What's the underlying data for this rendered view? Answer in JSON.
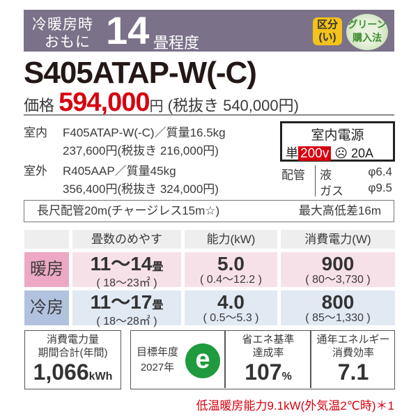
{
  "header": {
    "line1": "冷暖房時",
    "line2": "おもに",
    "size": "14",
    "size_unit": "畳程度",
    "kubun": "区分",
    "kubun_value": "(い)",
    "green1": "グリーン",
    "green2": "購入法"
  },
  "model": "S405ATAP-W(-C)",
  "price": {
    "label": "価格",
    "value": "594,000",
    "yen": "円",
    "tax_excl": "(税抜き 540,000円)"
  },
  "indoor": {
    "label": "室内",
    "model": "F405ATAP-W(-C)／質量16.5kg",
    "price": "237,600円(税抜き 216,000円)"
  },
  "outdoor": {
    "label": "室外",
    "model": "R405AAP／質量45kg",
    "price": "356,400円(税抜き 324,000円)"
  },
  "power": {
    "title": "室内電源",
    "phase": "単",
    "voltage": "200v",
    "plug_icon": "☹",
    "amp": "20A"
  },
  "piping": {
    "label": "配管",
    "liquid": "液",
    "liquid_size": "φ6.4",
    "gas": "ガス",
    "gas_size": "φ9.5"
  },
  "long_pipe": {
    "left": "長尺配管20m(チャージレス15m☆)",
    "right": "最大高低差16m"
  },
  "table": {
    "headers": [
      "",
      "畳数のめやす",
      "能力(kW)",
      "消費電力(W)"
    ],
    "rows": [
      {
        "label": "暖房",
        "tatami": "11～14",
        "tatami_unit": "畳",
        "area": "( 18～23㎡ )",
        "cap": "5.0",
        "cap_range": "( 0.4～12.2 )",
        "pow": "900",
        "pow_range": "( 80～3,730 )"
      },
      {
        "label": "冷房",
        "tatami": "11～17",
        "tatami_unit": "畳",
        "area": "( 18～28㎡ )",
        "cap": "4.0",
        "cap_range": "( 0.5～5.3 )",
        "pow": "800",
        "pow_range": "( 85～1,330 )"
      }
    ]
  },
  "annual": {
    "title1": "消費電力量",
    "title2": "期間合計(年間)",
    "value": "1,066",
    "unit": "kWh"
  },
  "target": {
    "line1": "目標年度",
    "line2": "2027年",
    "mark": "e",
    "mark_color": "#1f9a3e"
  },
  "achieve": {
    "title1": "省エネ基準",
    "title2": "達成率",
    "value": "107",
    "unit": "%"
  },
  "apf": {
    "title1": "通年エネルギー",
    "title2": "消費効率",
    "value": "7.1"
  },
  "footnote": "低温暖房能力9.1kW(外気温2℃時)＊1",
  "colors": {
    "band": "#7b7289",
    "price": "#d7000f",
    "heat": "#eca8c4",
    "cool": "#b1c2df"
  }
}
